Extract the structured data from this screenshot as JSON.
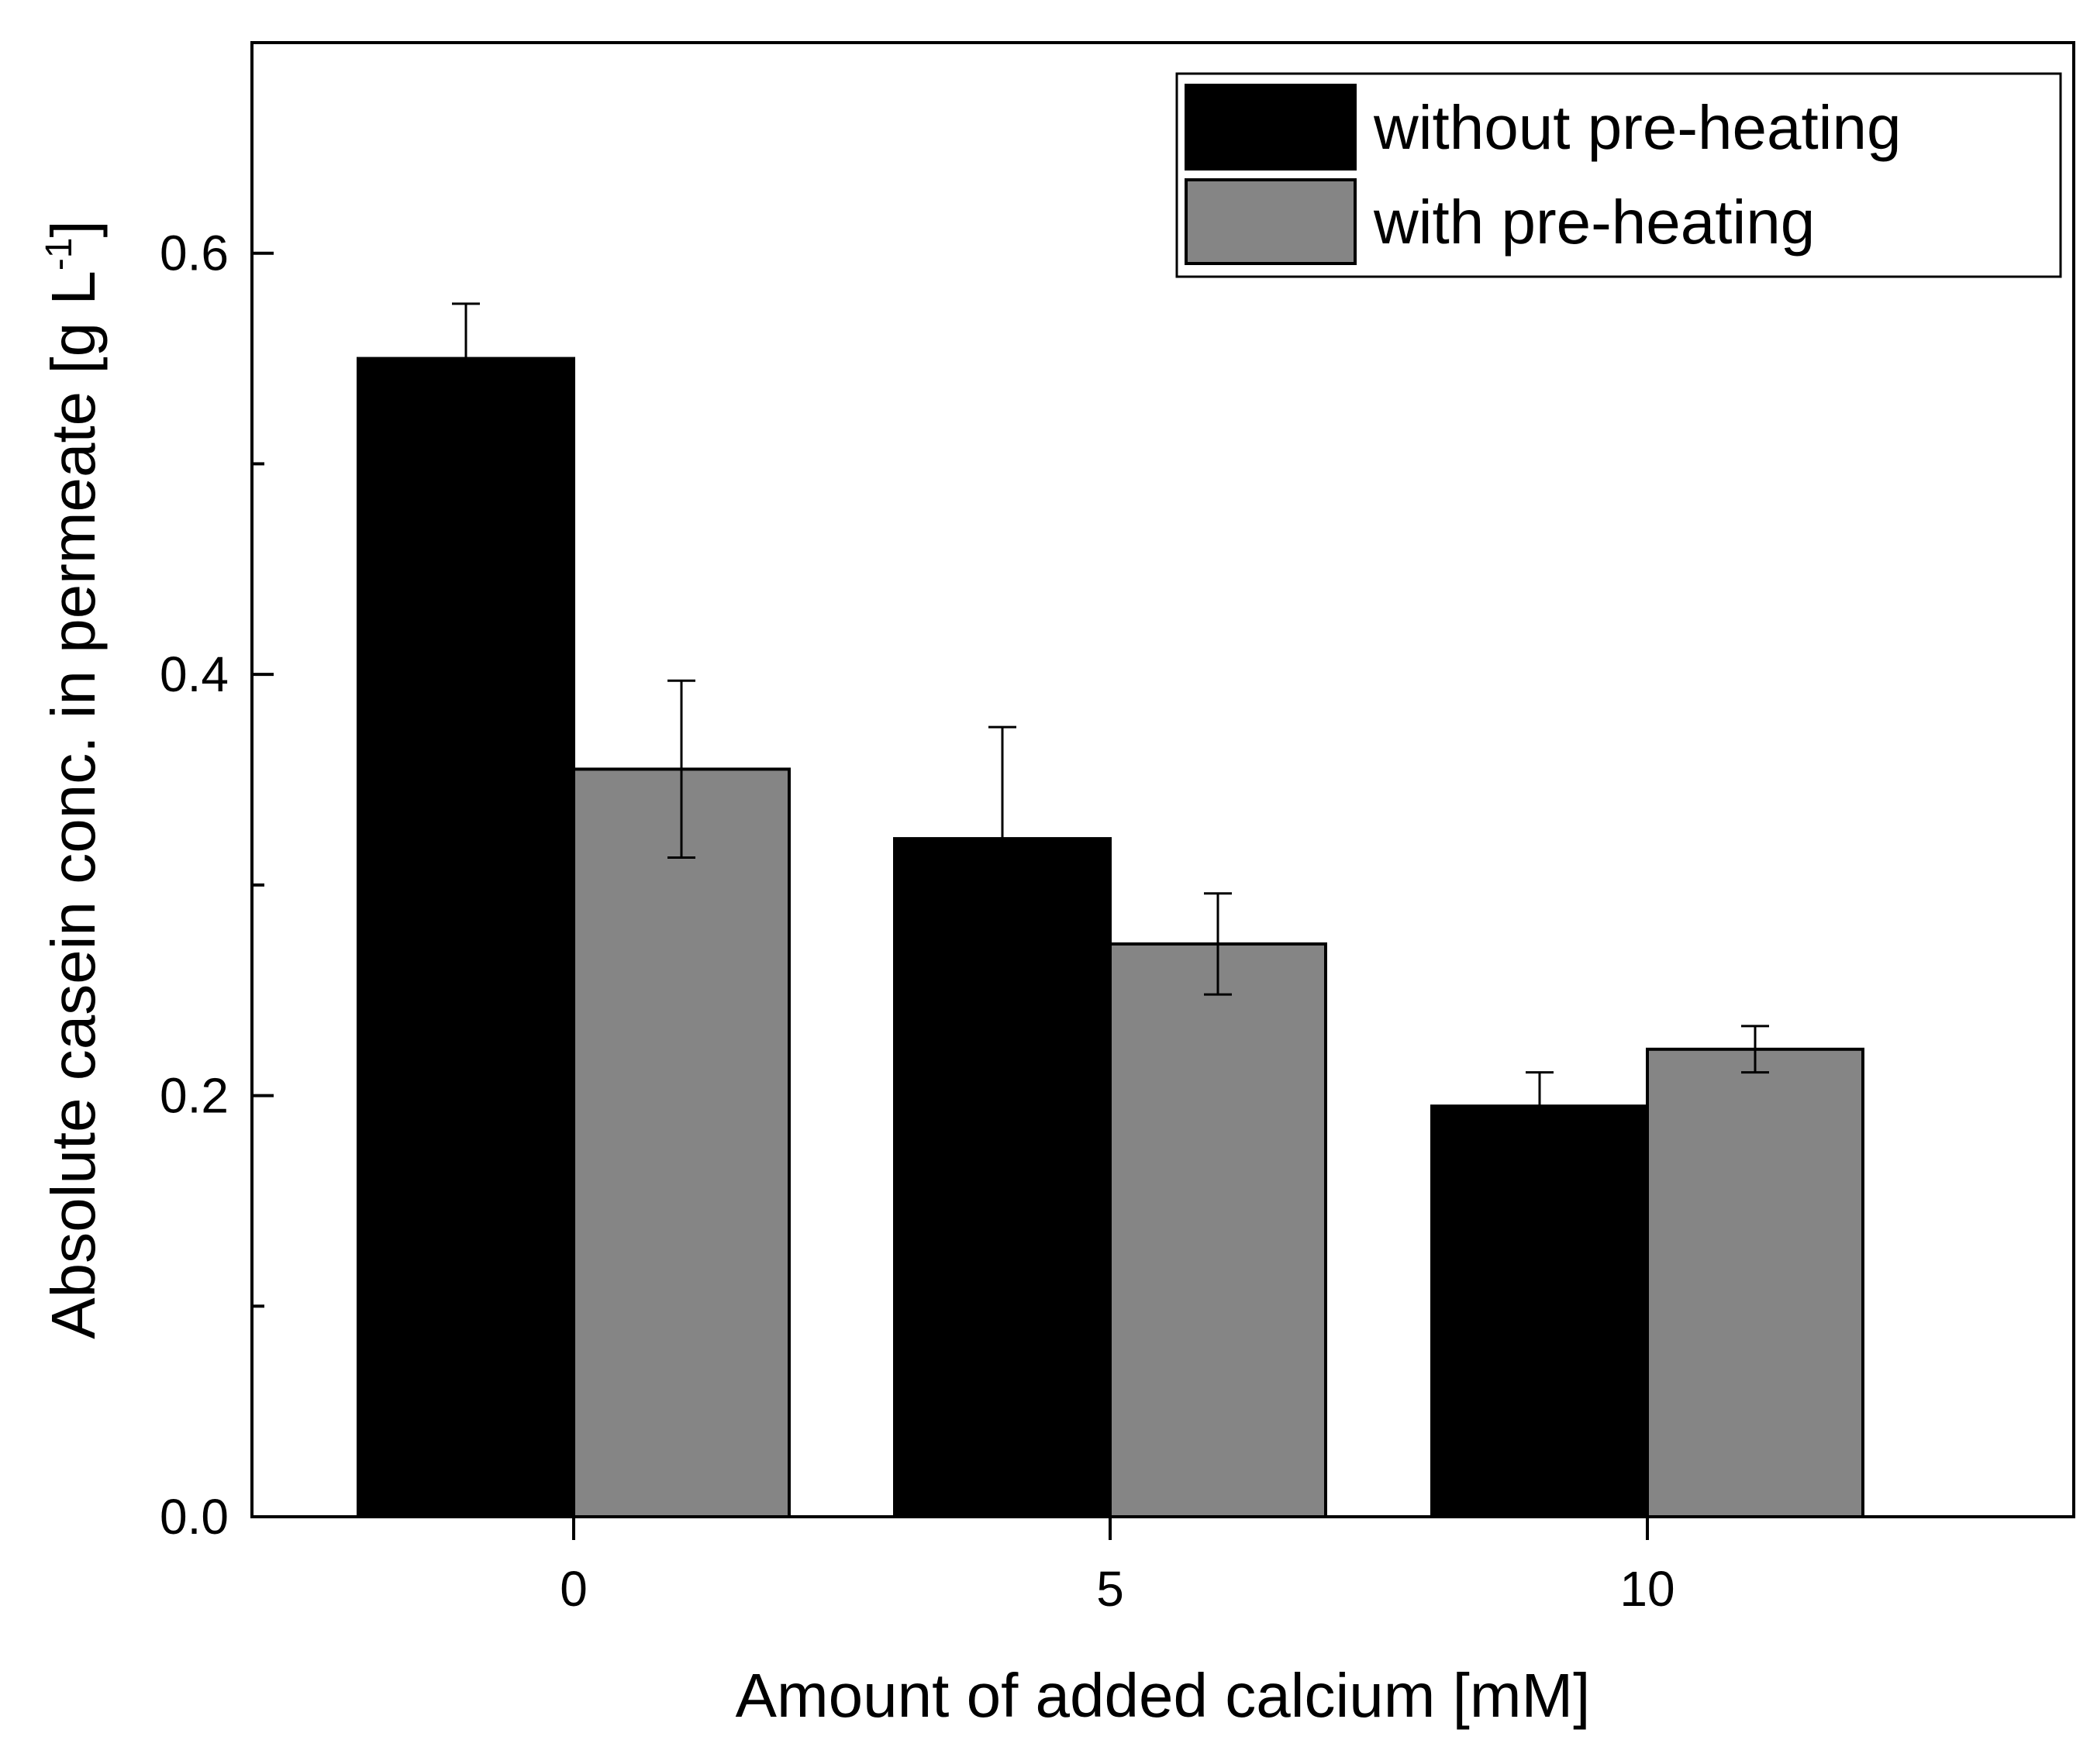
{
  "chart_data": {
    "type": "bar",
    "title": "",
    "xlabel": "Amount of added calcium [mM]",
    "ylabel_main": "Absolute casein conc. in permeate [g L",
    "ylabel_sup": "-1",
    "ylabel_close": "]",
    "categories": [
      "0",
      "5",
      "10"
    ],
    "ylim": [
      0,
      0.7
    ],
    "yticks": [
      0.0,
      0.2,
      0.4,
      0.6
    ],
    "ytick_labels": [
      "0.0",
      "0.2",
      "0.4",
      "0.6"
    ],
    "grid": false,
    "legend_position": "top-right",
    "series": [
      {
        "name": "without pre-heating",
        "color": "#000000",
        "values": [
          0.55,
          0.322,
          0.195
        ],
        "errors": [
          0.026,
          0.053,
          0.016
        ]
      },
      {
        "name": "with pre-heating",
        "color": "#858585",
        "values": [
          0.355,
          0.272,
          0.222
        ],
        "errors": [
          0.042,
          0.024,
          0.011
        ]
      }
    ]
  }
}
